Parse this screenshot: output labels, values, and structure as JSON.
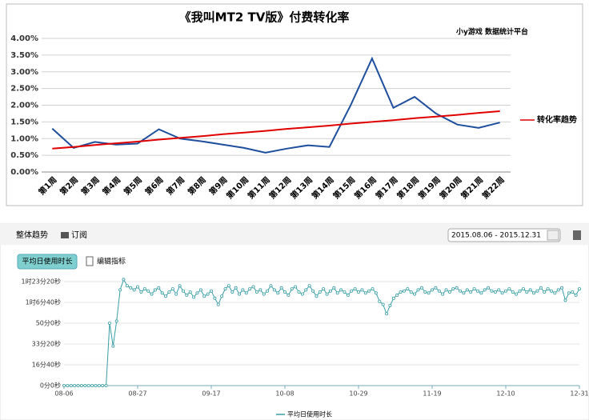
{
  "chart_data": [
    {
      "type": "line",
      "title": "《我叫MT2 TV版》付费转化率",
      "subtitle": "小y游戏 数据统计平台",
      "categories": [
        "第1周",
        "第2周",
        "第3周",
        "第4周",
        "第5周",
        "第6周",
        "第7周",
        "第8周",
        "第9周",
        "第10周",
        "第11周",
        "第12周",
        "第13周",
        "第14周",
        "第15周",
        "第16周",
        "第17周",
        "第18周",
        "第19周",
        "第20周",
        "第21周",
        "第22周"
      ],
      "series": [
        {
          "color": "#1f4e9c",
          "values": [
            1.3,
            0.72,
            0.9,
            0.82,
            0.85,
            1.28,
            1.0,
            0.92,
            0.82,
            0.72,
            0.58,
            0.7,
            0.8,
            0.75,
            2.0,
            3.4,
            1.92,
            2.25,
            1.75,
            1.42,
            1.32,
            1.48
          ]
        },
        {
          "name": "转化率趋势",
          "color": "#e00000",
          "values": [
            0.7,
            0.75,
            0.81,
            0.86,
            0.91,
            0.97,
            1.02,
            1.07,
            1.13,
            1.18,
            1.23,
            1.29,
            1.34,
            1.39,
            1.45,
            1.5,
            1.55,
            1.61,
            1.66,
            1.71,
            1.77,
            1.82
          ]
        }
      ],
      "ylim": [
        0,
        4
      ],
      "yticks": [
        {
          "value": 0,
          "label": "0.00%"
        },
        {
          "value": 0.5,
          "label": "0.50%"
        },
        {
          "value": 1,
          "label": "1.00%"
        },
        {
          "value": 1.5,
          "label": "1.50%"
        },
        {
          "value": 2,
          "label": "2.00%"
        },
        {
          "value": 2.5,
          "label": "2.50%"
        },
        {
          "value": 3,
          "label": "3.00%"
        },
        {
          "value": 3.5,
          "label": "3.50%"
        },
        {
          "value": 4,
          "label": "4.00%"
        }
      ],
      "grid": true
    },
    {
      "type": "line",
      "categories": [
        "08-06",
        null,
        null,
        null,
        null,
        null,
        null,
        null,
        null,
        null,
        null,
        null,
        null,
        null,
        null,
        null,
        null,
        null,
        null,
        null,
        null,
        "08-27",
        null,
        null,
        null,
        null,
        null,
        null,
        null,
        null,
        null,
        null,
        null,
        null,
        null,
        null,
        null,
        null,
        null,
        null,
        null,
        null,
        "09-17",
        null,
        null,
        null,
        null,
        null,
        null,
        null,
        null,
        null,
        null,
        null,
        null,
        null,
        null,
        null,
        null,
        null,
        null,
        null,
        null,
        "10-08",
        null,
        null,
        null,
        null,
        null,
        null,
        null,
        null,
        null,
        null,
        null,
        null,
        null,
        null,
        null,
        null,
        null,
        null,
        null,
        null,
        "10-29",
        null,
        null,
        null,
        null,
        null,
        null,
        null,
        null,
        null,
        null,
        null,
        null,
        null,
        null,
        null,
        null,
        null,
        null,
        null,
        null,
        "11-19",
        null,
        null,
        null,
        null,
        null,
        null,
        null,
        null,
        null,
        null,
        null,
        null,
        null,
        null,
        null,
        null,
        null,
        null,
        null,
        null,
        "12-10",
        null,
        null,
        null,
        null,
        null,
        null,
        null,
        null,
        null,
        null,
        null,
        null,
        null,
        null,
        null,
        null,
        null,
        null,
        null,
        null,
        "12-31"
      ],
      "series": [
        {
          "name": "平均日使用时长",
          "color": "#3a9ea5",
          "values": [
            0,
            0,
            0,
            0,
            0,
            0,
            0,
            0,
            0,
            0,
            0,
            0,
            0,
            3000,
            1900,
            3100,
            4600,
            5100,
            4800,
            4700,
            4600,
            4750,
            4500,
            4650,
            4550,
            4400,
            4600,
            4700,
            4450,
            4300,
            4500,
            4650,
            4400,
            4800,
            4550,
            4350,
            4500,
            4250,
            4450,
            4600,
            4300,
            4400,
            4550,
            4200,
            3900,
            4300,
            4650,
            4800,
            4500,
            4700,
            4400,
            4600,
            4450,
            4650,
            4750,
            4500,
            4600,
            4400,
            4550,
            4800,
            4600,
            4450,
            4700,
            4500,
            4350,
            4650,
            4750,
            4500,
            4400,
            4600,
            4800,
            4550,
            4300,
            4500,
            4650,
            4400,
            4550,
            4700,
            4450,
            4600,
            4500,
            4350,
            4550,
            4650,
            4500,
            4600,
            4450,
            4550,
            4650,
            4450,
            4050,
            3900,
            3450,
            3850,
            4200,
            4350,
            4500,
            4550,
            4650,
            4500,
            4400,
            4600,
            4700,
            4500,
            4450,
            4600,
            4700,
            4550,
            4400,
            4600,
            4500,
            4650,
            4700,
            4550,
            4450,
            4600,
            4500,
            4650,
            4550,
            4450,
            4600,
            4700,
            4550,
            4500,
            4600,
            4450,
            4550,
            4650,
            4500,
            4400,
            4550,
            4650,
            4500,
            4600,
            4450,
            4550,
            4700,
            4500,
            4650,
            4550,
            4450,
            4600,
            4700,
            4100,
            4450,
            4500,
            4350,
            4650
          ]
        }
      ],
      "ylim": [
        0,
        5000
      ],
      "yticks": [
        {
          "value": 0,
          "label": "0分0秒"
        },
        {
          "value": 1000,
          "label": "16分40秒"
        },
        {
          "value": 2000,
          "label": "33分20秒"
        },
        {
          "value": 3000,
          "label": "50分0秒"
        },
        {
          "value": 4000,
          "label": "1时6分40秒"
        },
        {
          "value": 5000,
          "label": "1时23分20秒"
        }
      ],
      "grid": true
    }
  ],
  "toolbar": {
    "tab": "整体趋势",
    "subscribe": "订阅",
    "date_range": "2015.08.06 - 2015.12.31"
  },
  "metric_button": "平均日使用时长",
  "edit_metrics": "编辑指标"
}
